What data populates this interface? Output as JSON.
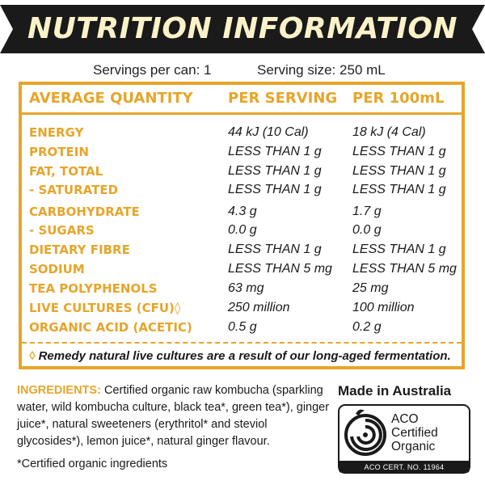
{
  "title": "NUTRITION INFORMATION",
  "servings_per_can": "Servings per can: 1",
  "serving_size": "Serving size: 250 mL",
  "table": {
    "headers": [
      "AVERAGE QUANTITY",
      "PER SERVING",
      "PER 100mL"
    ],
    "rows": [
      {
        "nutrient": "ENERGY",
        "per_serving": "44 kJ (10 Cal)",
        "per_100ml": "18 kJ (4 Cal)"
      },
      {
        "nutrient": "PROTEIN",
        "per_serving": "LESS THAN 1 g",
        "per_100ml": "LESS THAN 1 g"
      },
      {
        "nutrient": "FAT, TOTAL",
        "per_serving": "LESS THAN 1 g",
        "per_100ml": "LESS THAN 1 g"
      },
      {
        "nutrient": "- SATURATED",
        "per_serving": "LESS THAN 1 g",
        "per_100ml": "LESS THAN 1 g"
      },
      {
        "nutrient": "CARBOHYDRATE",
        "per_serving": "4.3 g",
        "per_100ml": "1.7 g"
      },
      {
        "nutrient": "- SUGARS",
        "per_serving": "0.0 g",
        "per_100ml": "0.0 g"
      },
      {
        "nutrient": "DIETARY FIBRE",
        "per_serving": "LESS THAN 1 g",
        "per_100ml": "LESS THAN 1 g"
      },
      {
        "nutrient": "SODIUM",
        "per_serving": "LESS THAN 5 mg",
        "per_100ml": "LESS THAN 5 mg"
      },
      {
        "nutrient": "TEA POLYPHENOLS",
        "per_serving": "63 mg",
        "per_100ml": "25 mg"
      },
      {
        "nutrient": "LIVE CULTURES (CFU)◊",
        "per_serving": "250 million",
        "per_100ml": "100 million"
      },
      {
        "nutrient": "ORGANIC ACID (ACETIC)",
        "per_serving": "0.5 g",
        "per_100ml": "0.2 g"
      }
    ],
    "footnote_mark": "◊",
    "footnote": " Remedy natural live cultures are a result of our long-aged fermentation."
  },
  "ingredients": {
    "label": "INGREDIENTS:",
    "text": " Certified organic raw kombucha (sparkling water, wild kombucha culture, black tea*, green tea*), ginger juice*, natural sweeteners (erythritol* and steviol glycosides*), lemon juice*, natural ginger flavour."
  },
  "certified_note": "*Certified organic ingredients",
  "made_in": "Made in Australia",
  "aco_logo": {
    "line1": "ACO",
    "line2": "Certified",
    "line3": "Organic",
    "cert_no": "ACO CERT. NO. 11964"
  },
  "colors": {
    "accent": "#e6a52a",
    "banner": "#1a1a1a",
    "banner_text": "#fbf2c9"
  },
  "icons": [
    "aco-certified-organic-logo-icon"
  ]
}
